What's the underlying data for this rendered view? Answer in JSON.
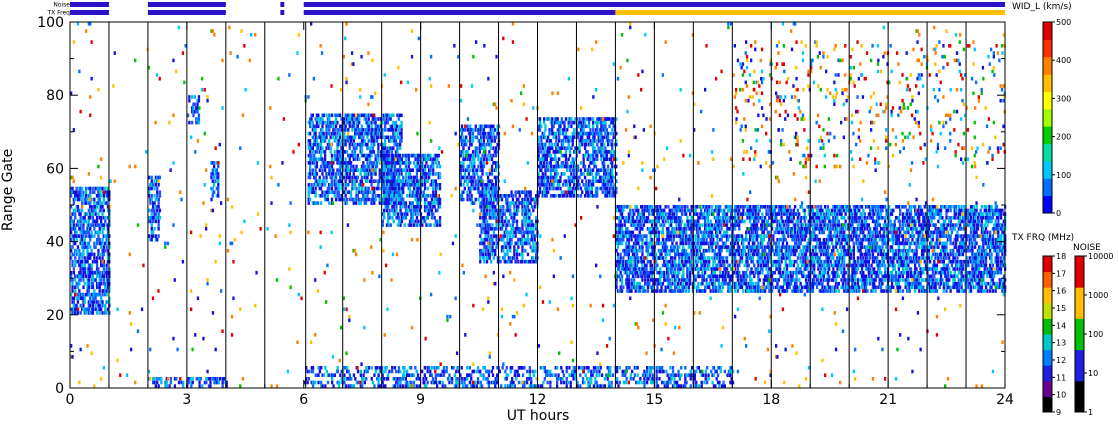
{
  "chart_data": {
    "type": "heatmap",
    "xlabel": "UT hours",
    "ylabel": "Range Gate",
    "xlim": [
      0,
      24
    ],
    "ylim": [
      0,
      100
    ],
    "x_ticks": [
      "0",
      "3",
      "6",
      "9",
      "12",
      "15",
      "18",
      "21",
      "24"
    ],
    "y_ticks": [
      "0",
      "20",
      "40",
      "60",
      "80",
      "100"
    ],
    "strip_labels": {
      "noise": "Noise",
      "txfreq": "TX Freq"
    },
    "data_segments": [
      {
        "t0": 0.0,
        "t1": 1.0
      },
      {
        "t0": 2.0,
        "t1": 4.0
      },
      {
        "t0": 5.4,
        "t1": 5.5
      },
      {
        "t0": 6.0,
        "t1": 24.0
      }
    ],
    "scan_boundaries": [
      1,
      2,
      3,
      4,
      5,
      6.05,
      7,
      8,
      9,
      10,
      11,
      12,
      13,
      14,
      15,
      16,
      17,
      18,
      19,
      20,
      21,
      22,
      23
    ],
    "width_colorbar": {
      "title": "WID_L (km/s)",
      "ticks": [
        "0",
        "100",
        "200",
        "300",
        "400",
        "500"
      ],
      "colors": [
        "#0000ff",
        "#0070ff",
        "#00c8ff",
        "#00e0a0",
        "#00d000",
        "#a0ff00",
        "#ffff00",
        "#ffc000",
        "#ff8000",
        "#ff3000",
        "#e00000"
      ]
    },
    "txfreq_colorbar": {
      "title": "TX FRQ (MHz)",
      "ticks": [
        "9",
        "10",
        "11",
        "12",
        "13",
        "14",
        "15",
        "16",
        "17",
        "18"
      ],
      "colors": [
        "#000000",
        "#6a0090",
        "#2020e0",
        "#0080ff",
        "#00c8c8",
        "#00c000",
        "#c0e000",
        "#ffc000",
        "#ff6000",
        "#e00000"
      ]
    },
    "noise_colorbar": {
      "title": "NOISE",
      "ticks": [
        "1",
        "10",
        "100",
        "1000",
        "10000"
      ],
      "colors": [
        "#000000",
        "#2020e0",
        "#00c000",
        "#ffc000",
        "#e00000"
      ]
    },
    "scatter_regions": [
      {
        "t0": 0.0,
        "t1": 1.0,
        "g0": 20,
        "g1": 55,
        "density": 0.55
      },
      {
        "t0": 2.0,
        "t1": 2.3,
        "g0": 40,
        "g1": 58,
        "density": 0.5
      },
      {
        "t0": 3.0,
        "t1": 3.3,
        "g0": 72,
        "g1": 80,
        "density": 0.45
      },
      {
        "t0": 3.6,
        "t1": 3.8,
        "g0": 52,
        "g1": 62,
        "density": 0.5
      },
      {
        "t0": 6.1,
        "t1": 8.5,
        "g0": 50,
        "g1": 75,
        "density": 0.55
      },
      {
        "t0": 8.0,
        "t1": 9.5,
        "g0": 44,
        "g1": 64,
        "density": 0.55
      },
      {
        "t0": 10.0,
        "t1": 11.0,
        "g0": 50,
        "g1": 72,
        "density": 0.5
      },
      {
        "t0": 10.5,
        "t1": 12.0,
        "g0": 34,
        "g1": 54,
        "density": 0.55
      },
      {
        "t0": 12.0,
        "t1": 14.0,
        "g0": 52,
        "g1": 74,
        "density": 0.55
      },
      {
        "t0": 14.0,
        "t1": 24.0,
        "g0": 26,
        "g1": 50,
        "density": 0.6
      },
      {
        "t0": 17.0,
        "t1": 24.0,
        "g0": 60,
        "g1": 95,
        "density": 0.06
      },
      {
        "t0": 6.0,
        "t1": 17.0,
        "g0": 0,
        "g1": 6,
        "density": 0.35
      },
      {
        "t0": 2.0,
        "t1": 4.0,
        "g0": 0,
        "g1": 3,
        "density": 0.35
      },
      {
        "t0": 0.0,
        "t1": 24.0,
        "g0": 0,
        "g1": 100,
        "density": 0.012
      }
    ]
  }
}
